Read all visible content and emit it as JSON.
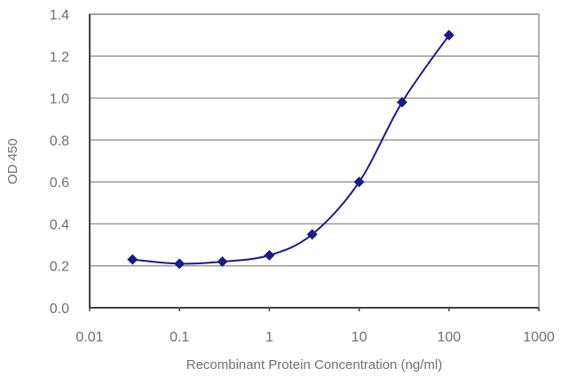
{
  "chart_data": {
    "type": "line",
    "title": "",
    "xlabel": "Recombinant Protein Concentration (ng/ml)",
    "ylabel": "OD 450",
    "x_scale": "log",
    "xlim": [
      0.01,
      1000
    ],
    "ylim": [
      0.0,
      1.4
    ],
    "x_ticks": [
      "0.01",
      "0.1",
      "1",
      "10",
      "100",
      "1000"
    ],
    "y_ticks": [
      "0.0",
      "0.2",
      "0.4",
      "0.6",
      "0.8",
      "1.0",
      "1.2",
      "1.4"
    ],
    "grid": "horizontal",
    "legend": null,
    "series": [
      {
        "name": "OD 450",
        "color": "#1a1a8c",
        "marker": "diamond",
        "x": [
          0.03,
          0.1,
          0.3,
          1,
          3,
          10,
          30,
          100
        ],
        "values": [
          0.23,
          0.21,
          0.22,
          0.25,
          0.35,
          0.6,
          0.98,
          1.3
        ]
      }
    ]
  },
  "colors": {
    "series": "#1a1a8c",
    "grid": "#9a9a9a",
    "axis": "#404040",
    "text": "#707070"
  }
}
